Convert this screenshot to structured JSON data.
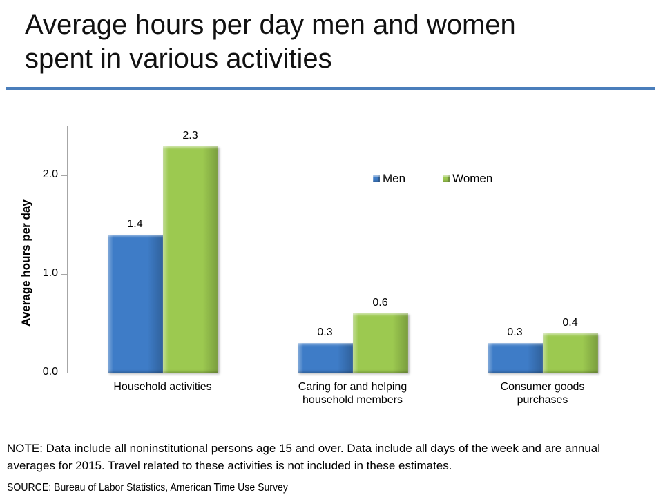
{
  "slide": {
    "title": "Average hours per day men and women spent in various activities",
    "title_lines": [
      "Average hours per day men and women",
      "spent in various activities"
    ],
    "divider_color": "#4a7ebb",
    "note": "NOTE: Data include all noninstitutional persons age 15 and over. Data include all days of the week and are annual averages for 2015. Travel related to these activities is not included in these estimates.",
    "source": "SOURCE: Bureau of Labor Statistics, American Time Use Survey"
  },
  "chart_data": {
    "type": "bar",
    "title": "Average hours per day men and women spent in various activities",
    "categories": [
      "Household activities",
      "Caring for and helping household members",
      "Consumer goods purchases"
    ],
    "series": [
      {
        "name": "Men",
        "color": "#3e7cc7",
        "values": [
          1.4,
          0.3,
          0.3
        ]
      },
      {
        "name": "Women",
        "color": "#9cc950",
        "values": [
          2.3,
          0.6,
          0.4
        ]
      }
    ],
    "xlabel": "",
    "ylabel": "Average hours per day",
    "ylim": [
      0,
      2.5
    ],
    "yticks": [
      {
        "value": 0,
        "label": "0.0"
      },
      {
        "value": 1,
        "label": "1.0"
      },
      {
        "value": 2,
        "label": "2.0"
      }
    ],
    "grid": false,
    "data_labels": true,
    "legend_position": "upper-center",
    "axis_color": "#a6a6a6"
  }
}
